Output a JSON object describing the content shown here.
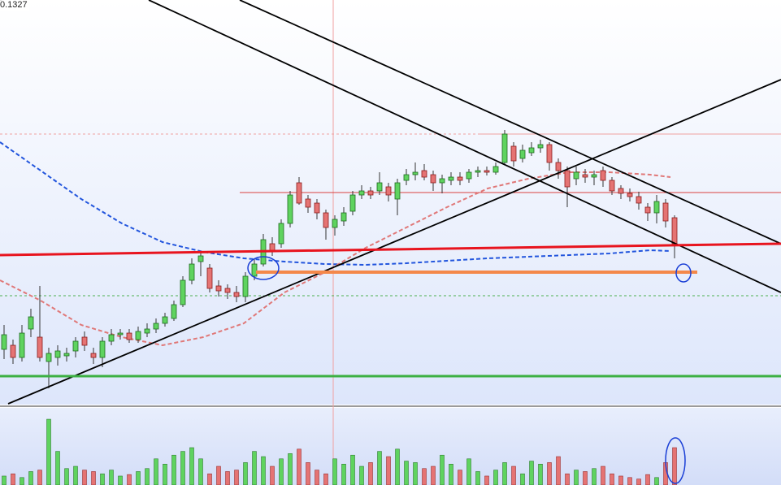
{
  "chart_data": {
    "type": "candlestick",
    "open": [
      0.1112,
      0.11145,
      0.1107,
      0.11245,
      0.11195,
      0.11045,
      0.1107,
      0.1108,
      0.1111,
      0.11195,
      0.11095,
      0.1107,
      0.1117,
      0.1121,
      0.1122,
      0.1118,
      0.1122,
      0.11245,
      0.1128,
      0.1131,
      0.11395,
      0.11545,
      0.1166,
      0.1162,
      0.1151,
      0.11495,
      0.1147,
      0.11445,
      0.1157,
      0.11645,
      0.1177,
      0.1177,
      0.11895,
      0.12145,
      0.12045,
      0.1202,
      0.1196,
      0.1187,
      0.1191,
      0.1197,
      0.1207,
      0.12095,
      0.12095,
      0.1212,
      0.12045,
      0.1216,
      0.12195,
      0.1222,
      0.12195,
      0.12145,
      0.1216,
      0.1218,
      0.1217,
      0.1221,
      0.1222,
      0.1221,
      0.1227,
      0.1237,
      0.12295,
      0.1233,
      0.1236,
      0.1238,
      0.1227,
      0.1222,
      0.1217,
      0.12195,
      0.1218,
      0.1222,
      0.1216,
      0.1211,
      0.1208,
      0.1206,
      0.11995,
      0.1196,
      0.1202,
      0.1193
    ],
    "high": [
      0.1127,
      0.1118,
      0.1127,
      0.1137,
      0.1151,
      0.1113,
      0.11145,
      0.1113,
      0.11195,
      0.1123,
      0.1113,
      0.11195,
      0.11245,
      0.11245,
      0.11245,
      0.1126,
      0.1128,
      0.1131,
      0.11345,
      0.1142,
      0.1157,
      0.1168,
      0.1172,
      0.11645,
      0.11545,
      0.1152,
      0.1151,
      0.11595,
      0.1168,
      0.1183,
      0.1181,
      0.1192,
      0.12095,
      0.1218,
      0.1207,
      0.12045,
      0.1198,
      0.11945,
      0.11995,
      0.12095,
      0.1213,
      0.1212,
      0.1221,
      0.12145,
      0.1217,
      0.1223,
      0.1227,
      0.1226,
      0.1222,
      0.12195,
      0.1221,
      0.1221,
      0.1223,
      0.12245,
      0.12245,
      0.1227,
      0.1247,
      0.12395,
      0.1238,
      0.12395,
      0.1241,
      0.12395,
      0.12295,
      0.12245,
      0.12245,
      0.1223,
      0.1222,
      0.12245,
      0.1218,
      0.1213,
      0.1211,
      0.1209,
      0.1202,
      0.1207,
      0.12045,
      0.11945
    ],
    "low": [
      0.1106,
      0.1103,
      0.11045,
      0.11195,
      0.11045,
      0.1088,
      0.1102,
      0.11045,
      0.1107,
      0.1111,
      0.1103,
      0.1101,
      0.11145,
      0.1118,
      0.1116,
      0.1116,
      0.11195,
      0.1122,
      0.1126,
      0.11295,
      0.1138,
      0.1152,
      0.1157,
      0.1147,
      0.11445,
      0.1143,
      0.1141,
      0.1141,
      0.11545,
      0.1163,
      0.11695,
      0.11745,
      0.1187,
      0.1201,
      0.1196,
      0.1192,
      0.11795,
      0.1182,
      0.1188,
      0.11945,
      0.12045,
      0.12045,
      0.1207,
      0.1203,
      0.11945,
      0.1213,
      0.1216,
      0.1216,
      0.12095,
      0.1208,
      0.1213,
      0.1213,
      0.12145,
      0.1218,
      0.1219,
      0.12195,
      0.1226,
      0.12245,
      0.1227,
      0.1231,
      0.1233,
      0.1222,
      0.1217,
      0.11995,
      0.1213,
      0.12145,
      0.1213,
      0.1212,
      0.1207,
      0.12045,
      0.1203,
      0.1198,
      0.1191,
      0.11895,
      0.1187,
      0.1168
    ],
    "close": [
      0.1121,
      0.1107,
      0.1122,
      0.1132,
      0.1107,
      0.11095,
      0.1111,
      0.11095,
      0.1117,
      0.11145,
      0.1107,
      0.1117,
      0.1121,
      0.1122,
      0.1118,
      0.1123,
      0.11245,
      0.1128,
      0.1132,
      0.11395,
      0.11545,
      0.11645,
      0.11695,
      0.11495,
      0.1148,
      0.1147,
      0.11445,
      0.1157,
      0.11645,
      0.11795,
      0.1172,
      0.11895,
      0.1207,
      0.1202,
      0.11995,
      0.1196,
      0.1187,
      0.1192,
      0.1196,
      0.1207,
      0.12095,
      0.1207,
      0.12145,
      0.1207,
      0.12145,
      0.12195,
      0.1221,
      0.1218,
      0.12145,
      0.1217,
      0.1218,
      0.1216,
      0.1221,
      0.1222,
      0.1221,
      0.12245,
      0.12445,
      0.1228,
      0.12345,
      0.1236,
      0.1238,
      0.1227,
      0.1222,
      0.1212,
      0.1221,
      0.1218,
      0.12195,
      0.1216,
      0.12095,
      0.1208,
      0.1206,
      0.1202,
      0.1196,
      0.1203,
      0.1191,
      0.1177
    ],
    "volume": [
      12,
      15,
      10,
      18,
      20,
      88,
      45,
      22,
      25,
      20,
      18,
      15,
      20,
      12,
      14,
      18,
      22,
      35,
      28,
      40,
      45,
      50,
      35,
      15,
      25,
      18,
      20,
      30,
      45,
      38,
      25,
      35,
      42,
      48,
      30,
      20,
      15,
      35,
      28,
      40,
      25,
      30,
      45,
      38,
      48,
      32,
      30,
      22,
      25,
      40,
      28,
      20,
      35,
      18,
      12,
      20,
      30,
      25,
      15,
      32,
      28,
      30,
      38,
      15,
      20,
      18,
      22,
      25,
      15,
      12,
      10,
      8,
      14,
      10,
      30,
      50
    ],
    "ylim": [
      0.10785,
      0.1327
    ],
    "yticks": [
      0.1327
    ],
    "volume_ylim": [
      0,
      100
    ],
    "up_color": "#5fd35f",
    "down_color": "#e57373"
  }
}
